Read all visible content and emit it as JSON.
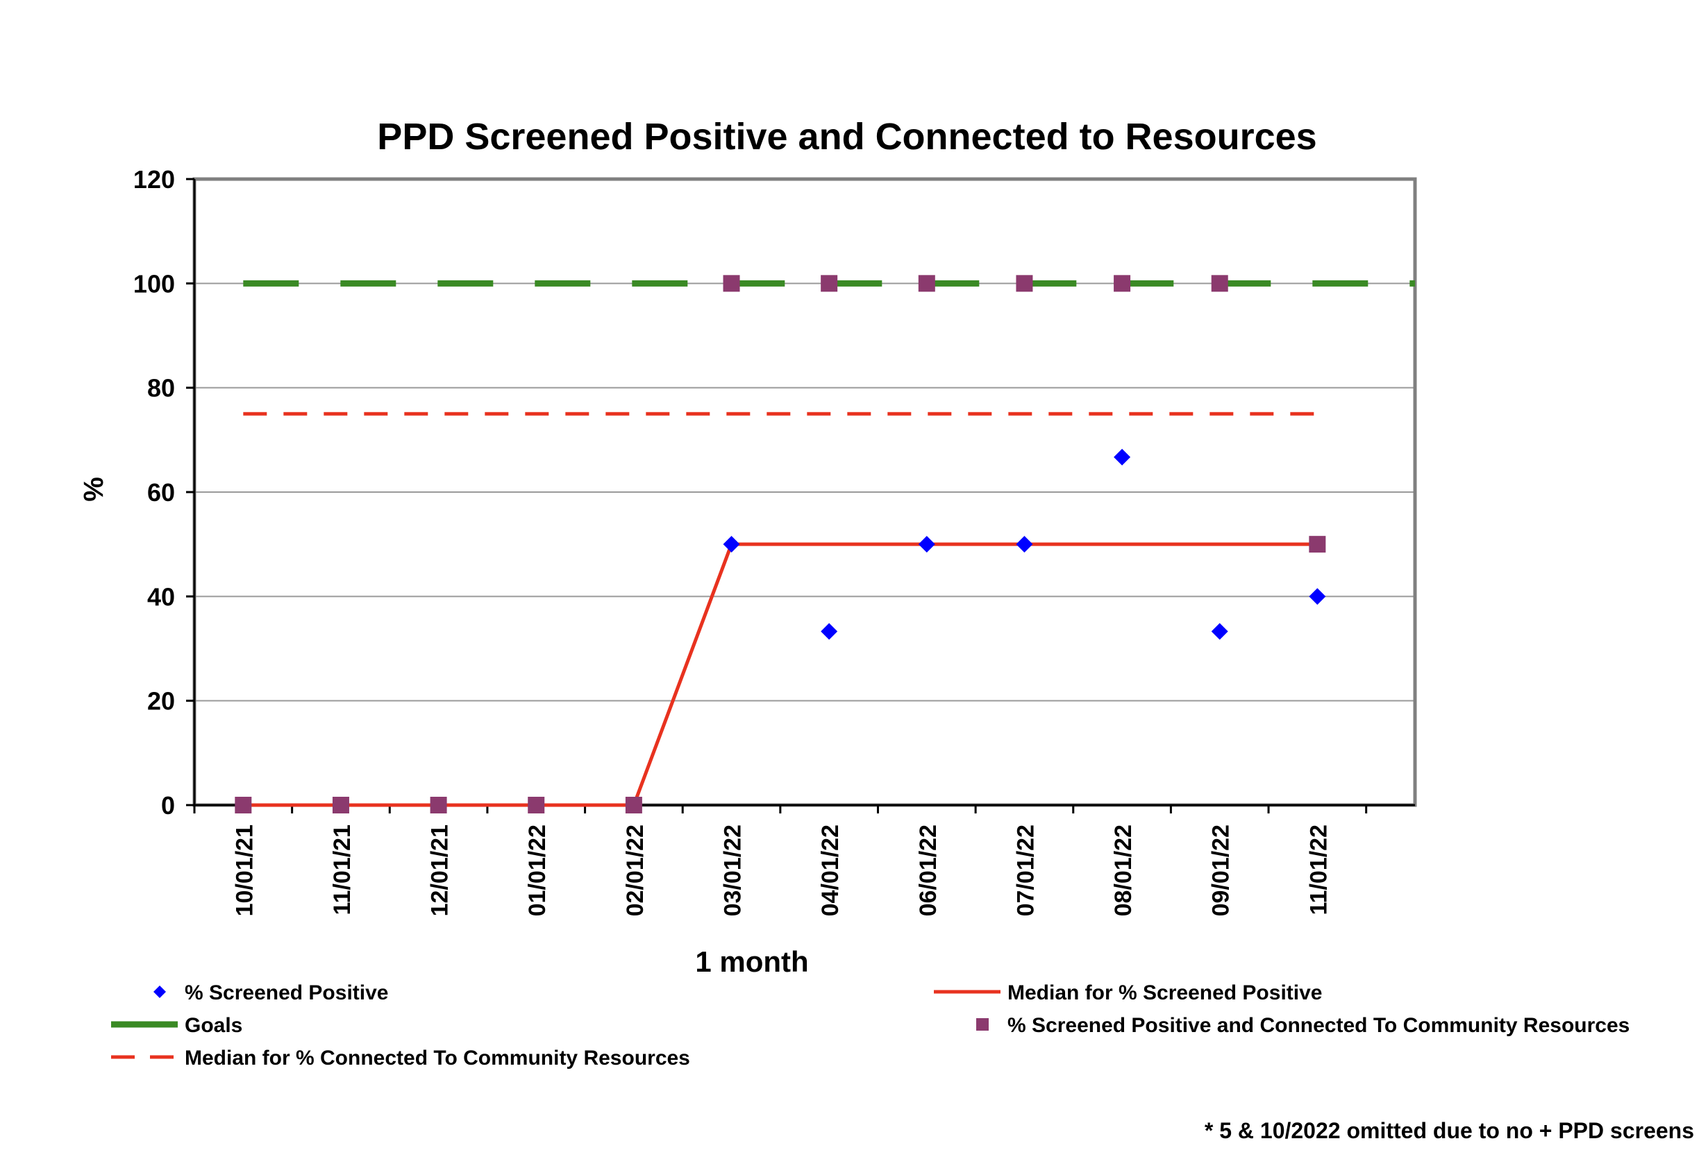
{
  "chart_data": {
    "type": "line",
    "title": "PPD Screened Positive and Connected to Resources",
    "xlabel": "1 month",
    "ylabel": "%",
    "ylim": [
      0,
      120
    ],
    "yticks": [
      "0",
      "20",
      "40",
      "60",
      "80",
      "100",
      "120"
    ],
    "categories": [
      "10/01/21",
      "11/01/21",
      "12/01/21",
      "01/01/22",
      "02/01/22",
      "03/01/22",
      "04/01/22",
      "06/01/22",
      "07/01/22",
      "08/01/22",
      "09/01/22",
      "11/01/22"
    ],
    "grid": "horizontal",
    "legend_position": "bottom",
    "series": [
      {
        "name": "% Screened Positive",
        "kind": "markers",
        "marker": "diamond",
        "color": "#0000ff",
        "values": [
          null,
          null,
          null,
          null,
          null,
          50,
          33.3,
          50,
          50,
          66.7,
          33.3,
          40
        ]
      },
      {
        "name": "Median for % Screened Positive",
        "kind": "line",
        "color": "#e8321f",
        "values": [
          0,
          0,
          0,
          0,
          0,
          50,
          50,
          50,
          50,
          50,
          50,
          50
        ]
      },
      {
        "name": "Goals",
        "kind": "dashed-line",
        "color": "#3a8a24",
        "values": [
          100,
          100,
          100,
          100,
          100,
          100,
          100,
          100,
          100,
          100,
          100,
          100
        ]
      },
      {
        "name": "% Screened Positive and Connected To Community Resources",
        "kind": "markers",
        "marker": "square",
        "color": "#8b3a6e",
        "values": [
          0,
          0,
          0,
          0,
          0,
          100,
          100,
          100,
          100,
          100,
          100,
          50
        ]
      },
      {
        "name": "Median for % Connected To Community Resources",
        "kind": "dashed-line",
        "color": "#e8321f",
        "values": [
          75,
          75,
          75,
          75,
          75,
          75,
          75,
          75,
          75,
          75,
          75,
          75
        ]
      }
    ],
    "annotations": [
      "* 5 & 10/2022 omitted due to no + PPD screens"
    ]
  }
}
